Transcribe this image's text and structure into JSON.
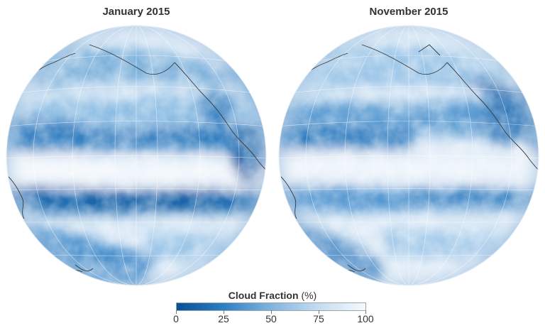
{
  "panels": [
    {
      "title": "January 2015"
    },
    {
      "title": "November 2015"
    }
  ],
  "colorbar": {
    "label_bold": "Cloud Fraction",
    "label_unit": "(%)",
    "ticks": [
      "0",
      "25",
      "50",
      "75",
      "100"
    ],
    "min": 0,
    "max": 100,
    "colors": [
      "#0a4f96",
      "#2e7fc3",
      "#7fb4de",
      "#c6dcef",
      "#f5f9fd"
    ]
  },
  "map_colors": {
    "cloud_fraction_low": "#1565ad",
    "cloud_fraction_mid": "#6ea7d6",
    "cloud_fraction_high": "#eef5fb",
    "graticule": "#ffffff",
    "coastline": "#3a3a3a"
  }
}
